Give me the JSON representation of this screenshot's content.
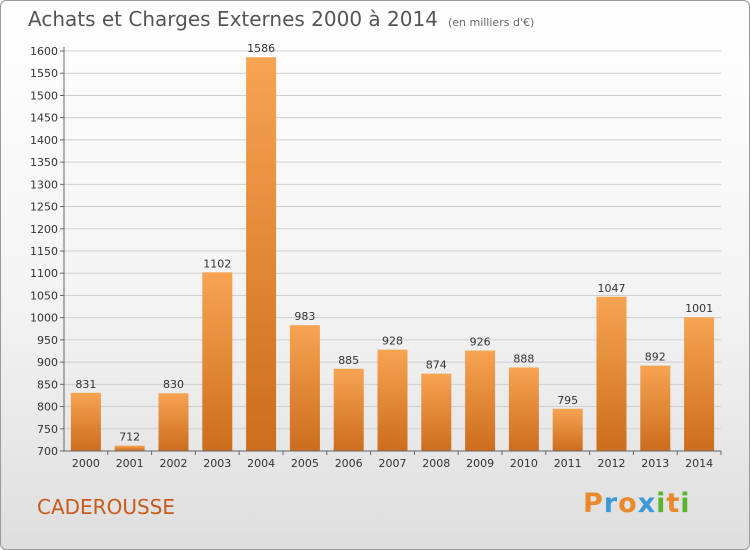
{
  "title": "Achats et Charges Externes 2000 à 2014",
  "subtitle": "(en milliers d'€)",
  "place": "CADEROUSSE",
  "logo": {
    "text": "Proxiti",
    "colors": [
      "#e8892b",
      "#3a9ad9",
      "#e8892b",
      "#3a9ad9",
      "#5cb531",
      "#e8892b",
      "#5cb531"
    ]
  },
  "colors": {
    "bar_top": "#f7a452",
    "bar_bottom": "#cc6d1c",
    "grid": "#cfcfcf"
  },
  "chart_data": {
    "type": "bar",
    "title": "Achats et Charges Externes 2000 à 2014",
    "categories": [
      "2000",
      "2001",
      "2002",
      "2003",
      "2004",
      "2005",
      "2006",
      "2007",
      "2008",
      "2009",
      "2010",
      "2011",
      "2012",
      "2013",
      "2014"
    ],
    "values": [
      831,
      712,
      830,
      1102,
      1586,
      983,
      885,
      928,
      874,
      926,
      888,
      795,
      1047,
      892,
      1001
    ],
    "ylim": [
      700,
      1600
    ],
    "yticks": [
      700,
      750,
      800,
      850,
      900,
      950,
      1000,
      1050,
      1100,
      1150,
      1200,
      1250,
      1300,
      1350,
      1400,
      1450,
      1500,
      1550,
      1600
    ],
    "grid": true
  }
}
